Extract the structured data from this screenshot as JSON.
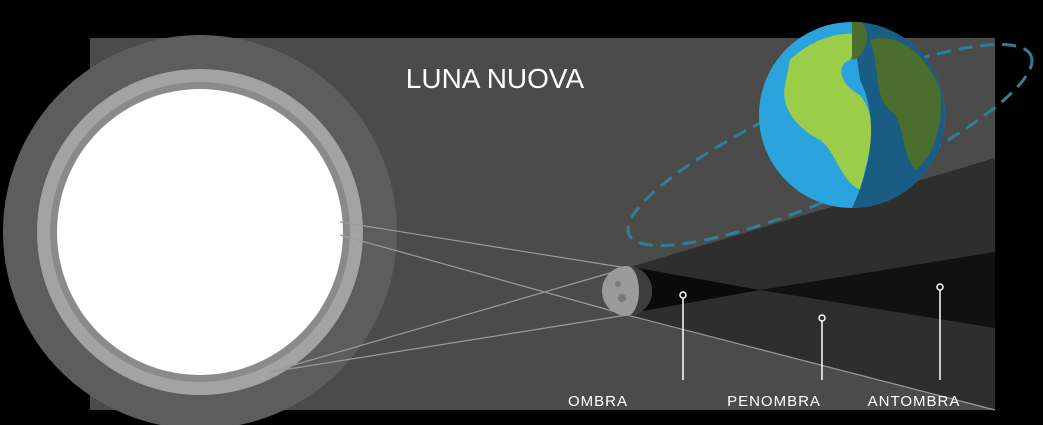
{
  "title": "LUNA NUOVA",
  "labels": [
    "OMBRA",
    "PENOMBRA",
    "ANTOMBRA"
  ]
}
